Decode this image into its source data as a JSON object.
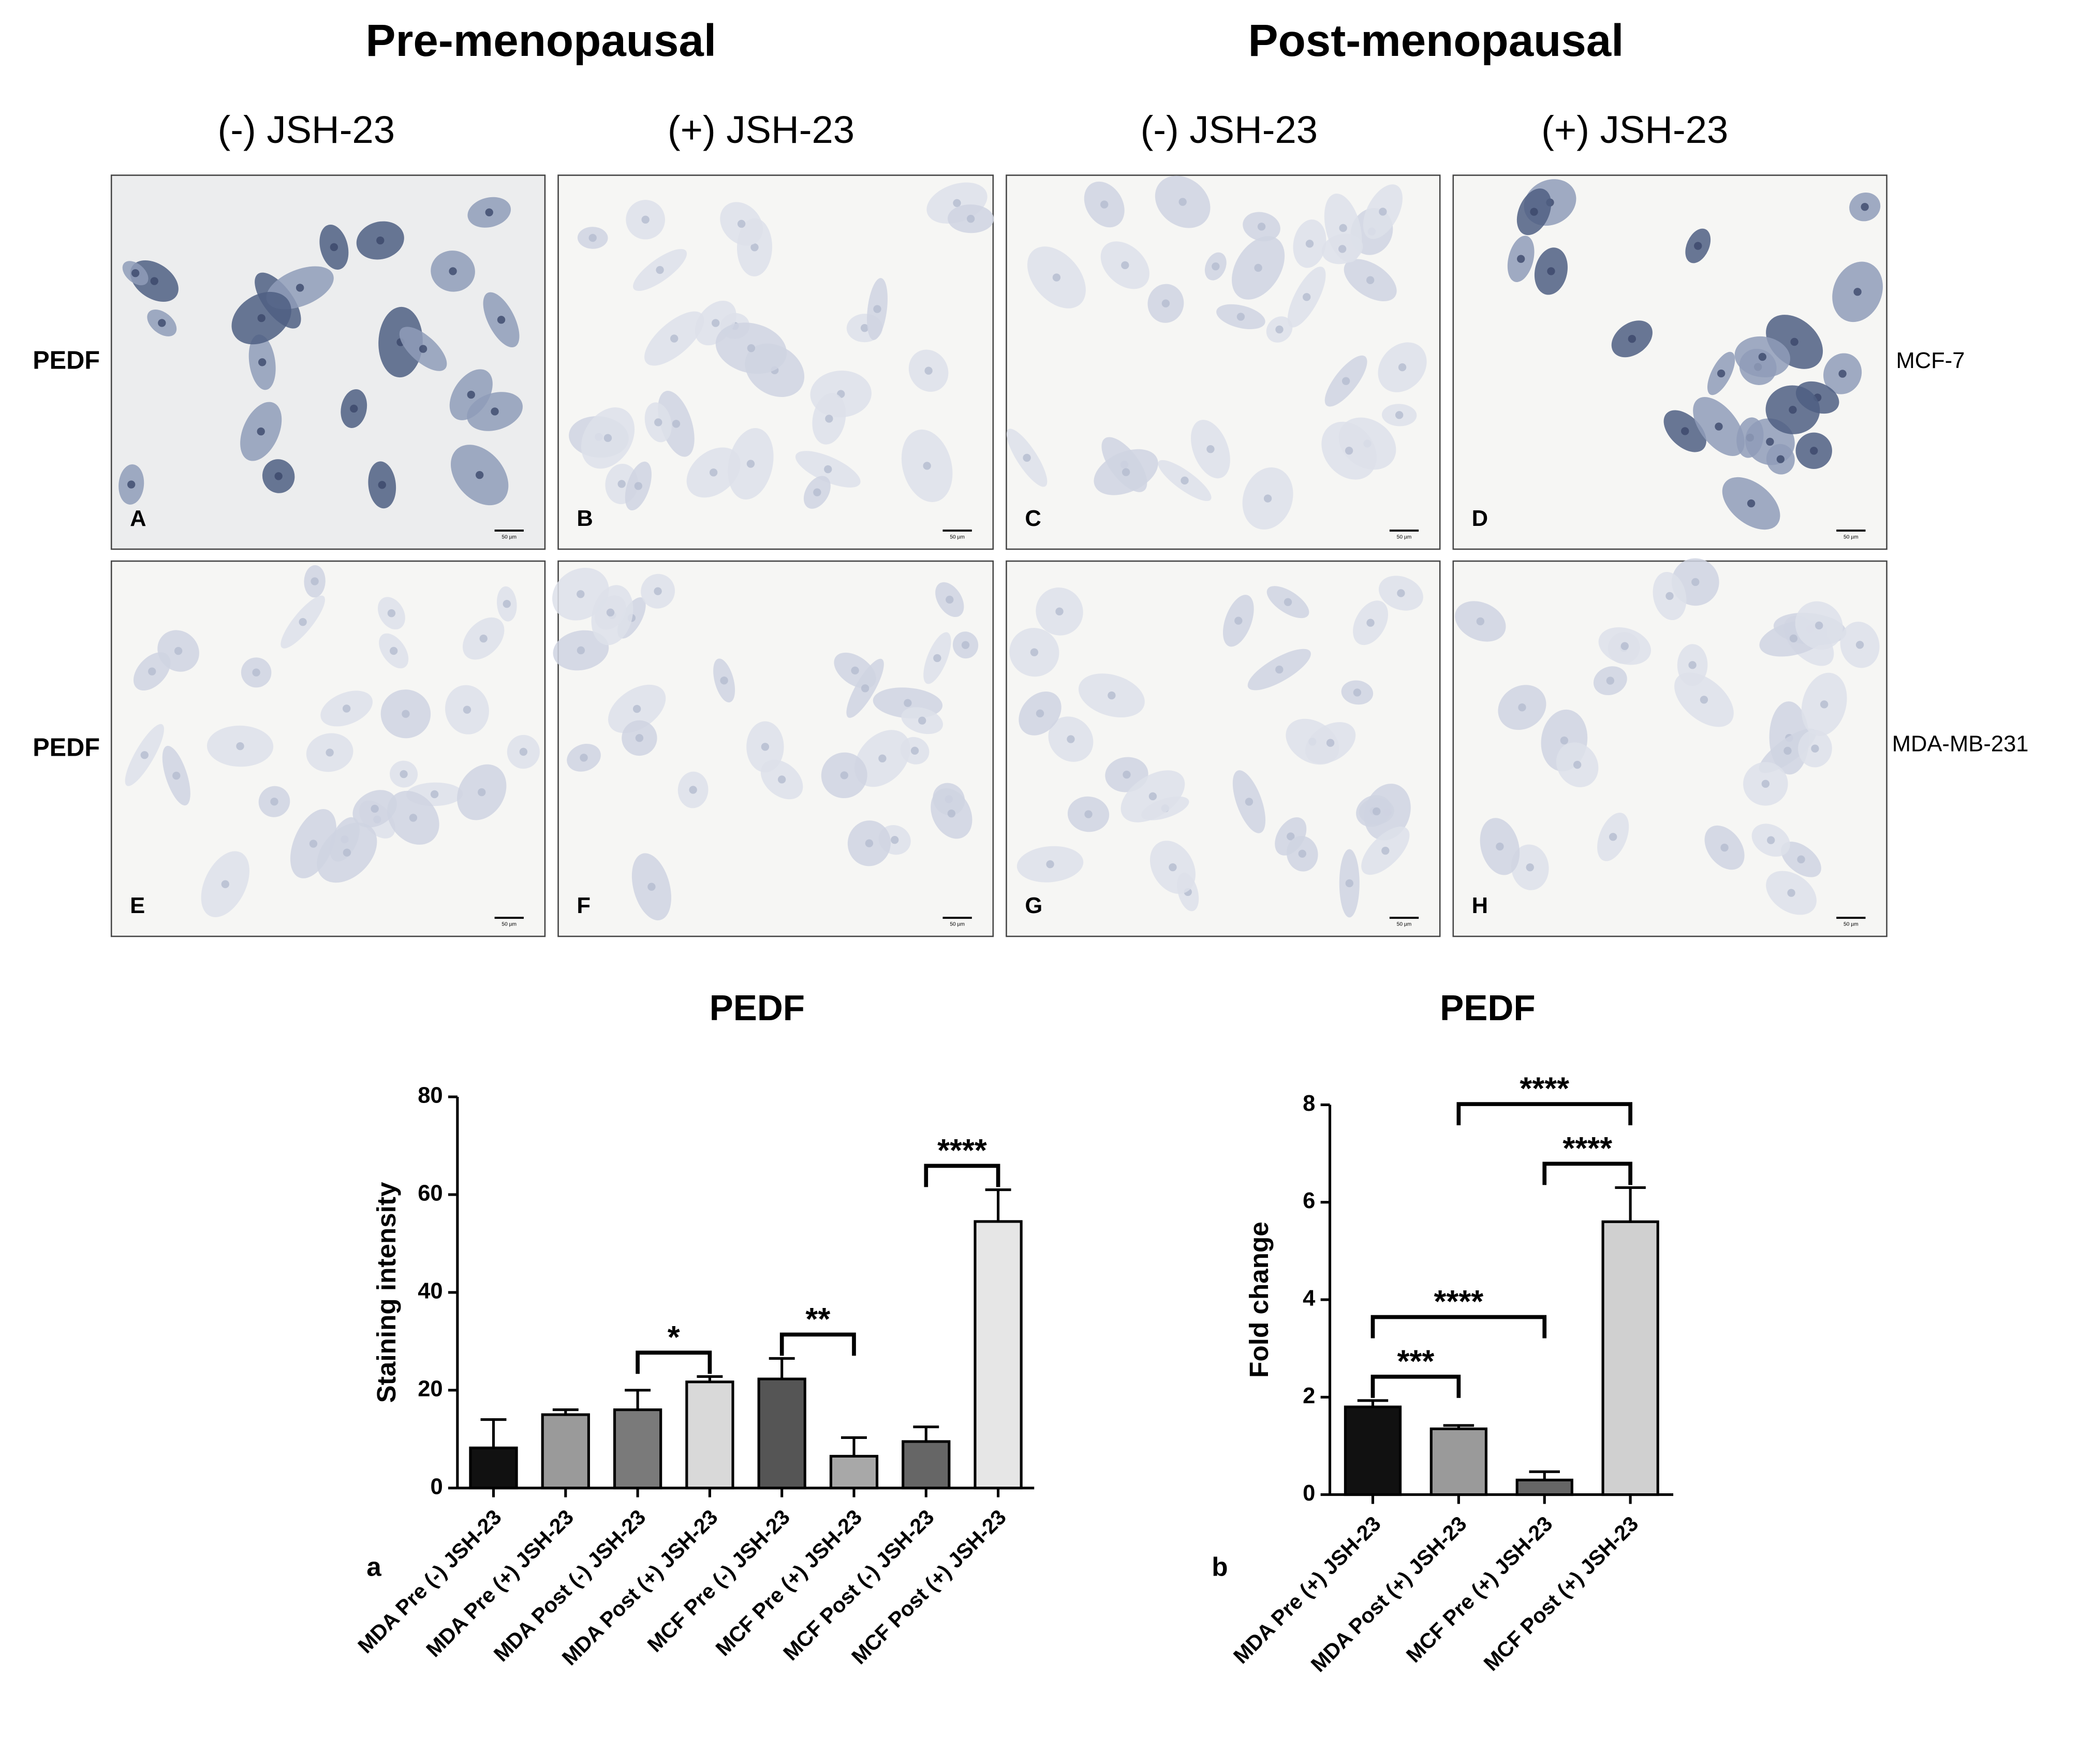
{
  "figure": {
    "group_titles": [
      "Pre-menopausal",
      "Post-menopausal"
    ],
    "column_titles": [
      "(-) JSH-23",
      "(+) JSH-23",
      "(-) JSH-23",
      "(+) JSH-23"
    ],
    "row_labels": [
      "PEDF",
      "PEDF"
    ],
    "cell_lines": [
      "MCF-7",
      "MDA-MB-231"
    ],
    "panel_letters": [
      "A",
      "B",
      "C",
      "D",
      "E",
      "F",
      "G",
      "H"
    ],
    "scale_bar": "50 µm"
  },
  "chart_data": [
    {
      "type": "bar",
      "title": "PEDF",
      "panel_label": "a",
      "y_label": "Staining intensity",
      "categories": [
        "MDA Pre (-) JSH-23",
        "MDA Pre (+) JSH-23",
        "MDA Post (-) JSH-23",
        "MDA Post (+) JSH-23",
        "MCF Pre (-) JSH-23",
        "MCF Pre (+) JSH-23",
        "MCF Post (-) JSH-23",
        "MCF Post (+) JSH-23"
      ],
      "values": [
        8.2,
        15,
        16,
        21.7,
        22.3,
        6.5,
        9.5,
        54.5
      ],
      "errors": [
        5.8,
        1,
        4,
        1.1,
        4.2,
        3.8,
        3,
        6.5
      ],
      "colors": [
        "#111111",
        "#9a9a9a",
        "#7a7a7a",
        "#d9d9d9",
        "#555555",
        "#a8a8a8",
        "#666666",
        "#e6e6e6"
      ],
      "ylim": [
        0,
        80
      ],
      "yticks": [
        0,
        20,
        40,
        60,
        80
      ],
      "significance": [
        {
          "from": 2,
          "to": 3,
          "label": "*"
        },
        {
          "from": 4,
          "to": 5,
          "label": "**"
        },
        {
          "from": 6,
          "to": 7,
          "label": "****"
        }
      ]
    },
    {
      "type": "bar",
      "title": "PEDF",
      "panel_label": "b",
      "y_label": "Fold change",
      "categories": [
        "MDA Pre (+) JSH-23",
        "MDA Post (+) JSH-23",
        "MCF Pre (+) JSH-23",
        "MCF Post (+) JSH-23"
      ],
      "values": [
        1.8,
        1.35,
        0.3,
        5.6
      ],
      "errors": [
        0.13,
        0.07,
        0.17,
        0.7
      ],
      "colors": [
        "#111111",
        "#9a9a9a",
        "#666666",
        "#d0d0d0"
      ],
      "ylim": [
        0,
        8
      ],
      "yticks": [
        0,
        2,
        4,
        6,
        8
      ],
      "significance": [
        {
          "from": 0,
          "to": 1,
          "label": "***"
        },
        {
          "from": 0,
          "to": 2,
          "label": "****"
        },
        {
          "from": 2,
          "to": 3,
          "label": "****"
        },
        {
          "from": 1,
          "to": 3,
          "label": "****"
        }
      ]
    }
  ]
}
